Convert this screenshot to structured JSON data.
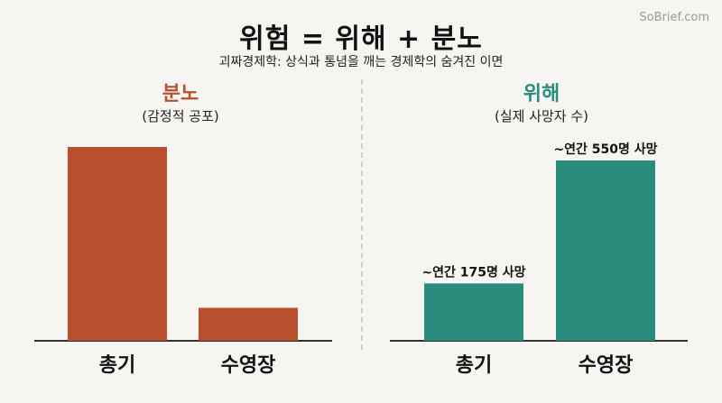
{
  "watermark": "SoBrief.com",
  "title": "위험 = 위해 + 분노",
  "subtitle": "괴짜경제학: 상식과 통념을 깨는 경제학의 숨겨진 이면",
  "colors": {
    "outrage": "#b8502f",
    "hazard": "#2a8c7d",
    "axis": "#333333",
    "divider": "#cfcfcf"
  },
  "chart_data": [
    {
      "type": "bar",
      "title": "분노",
      "subtitle": "(감정적 공포)",
      "categories": [
        "총기",
        "수영장"
      ],
      "values": [
        100,
        17
      ],
      "ylim": [
        0,
        100
      ],
      "data_labels": [
        "",
        ""
      ]
    },
    {
      "type": "bar",
      "title": "위해",
      "subtitle": "(실제 사망자 수)",
      "categories": [
        "총기",
        "수영장"
      ],
      "values": [
        175,
        550
      ],
      "ylim": [
        0,
        550
      ],
      "data_labels": [
        "~연간 175명 사망",
        "~연간 550명 사망"
      ]
    }
  ]
}
